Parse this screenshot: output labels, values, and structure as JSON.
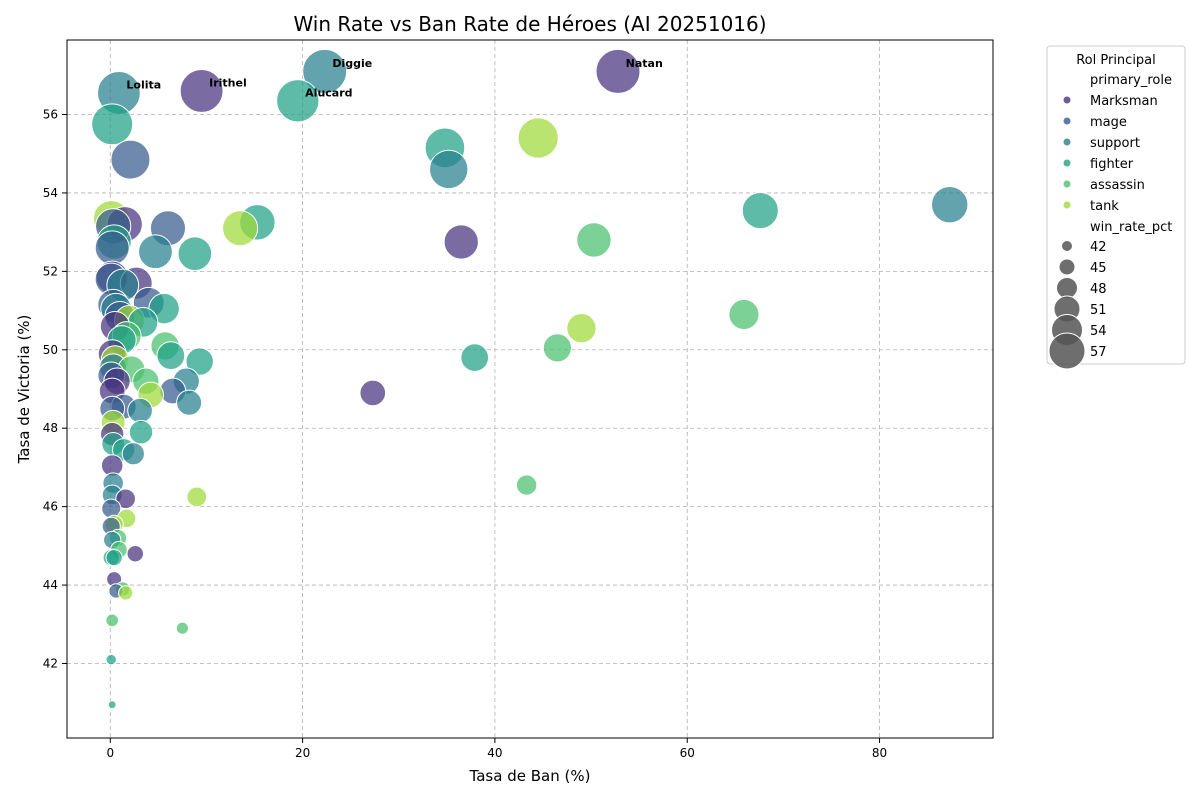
{
  "chart_data": {
    "type": "scatter",
    "title": "Win Rate vs Ban Rate de Héroes (AI 20251016)",
    "xlabel": "Tasa de Ban (%)",
    "ylabel": "Tasa de Victoria (%)",
    "xlim": [
      -4.5,
      91.8
    ],
    "ylim": [
      40.1,
      57.9
    ],
    "xticks": [
      0,
      20,
      40,
      60,
      80
    ],
    "yticks": [
      42,
      44,
      46,
      48,
      50,
      52,
      54,
      56
    ],
    "grid": true,
    "size_range": [
      41,
      57.1
    ],
    "legend": {
      "placement": "outside-right",
      "title": "Rol Principal",
      "hue_header": "primary_role",
      "size_header": "win_rate_pct",
      "size_entries": [
        42,
        45,
        48,
        51,
        54,
        57
      ]
    },
    "roles": [
      {
        "name": "Marksman",
        "color": "#46327e"
      },
      {
        "name": "mage",
        "color": "#365c8d"
      },
      {
        "name": "support",
        "color": "#277f8e"
      },
      {
        "name": "fighter",
        "color": "#1fa187"
      },
      {
        "name": "assassin",
        "color": "#4ac16d"
      },
      {
        "name": "tank",
        "color": "#a0da39"
      }
    ],
    "points": [
      {
        "x": 22.3,
        "y": 57.1,
        "role": "support",
        "label": "Diggie"
      },
      {
        "x": 52.8,
        "y": 57.1,
        "role": "Marksman",
        "label": "Natan"
      },
      {
        "x": 9.5,
        "y": 56.6,
        "role": "Marksman",
        "label": "Irithel"
      },
      {
        "x": 0.9,
        "y": 56.55,
        "role": "support",
        "label": "Lolita"
      },
      {
        "x": 19.5,
        "y": 56.35,
        "role": "fighter",
        "label": "Alucard"
      },
      {
        "x": 0.2,
        "y": 55.75,
        "role": "fighter",
        "label": ""
      },
      {
        "x": 44.5,
        "y": 55.4,
        "role": "tank",
        "label": ""
      },
      {
        "x": 34.8,
        "y": 55.15,
        "role": "fighter",
        "label": ""
      },
      {
        "x": 2.1,
        "y": 54.85,
        "role": "mage",
        "label": ""
      },
      {
        "x": 35.2,
        "y": 54.6,
        "role": "support",
        "label": ""
      },
      {
        "x": 87.3,
        "y": 53.7,
        "role": "support",
        "label": ""
      },
      {
        "x": 67.6,
        "y": 53.55,
        "role": "fighter",
        "label": ""
      },
      {
        "x": 15.3,
        "y": 53.25,
        "role": "fighter",
        "label": ""
      },
      {
        "x": 1.5,
        "y": 53.2,
        "role": "Marksman",
        "label": ""
      },
      {
        "x": 13.5,
        "y": 53.1,
        "role": "tank",
        "label": ""
      },
      {
        "x": 6.0,
        "y": 53.1,
        "role": "mage",
        "label": ""
      },
      {
        "x": 0.3,
        "y": 53.15,
        "role": "mage",
        "label": ""
      },
      {
        "x": 0.1,
        "y": 53.35,
        "role": "tank",
        "label": ""
      },
      {
        "x": 0.4,
        "y": 52.75,
        "role": "fighter",
        "label": ""
      },
      {
        "x": 36.5,
        "y": 52.75,
        "role": "Marksman",
        "label": ""
      },
      {
        "x": 50.3,
        "y": 52.8,
        "role": "assassin",
        "label": ""
      },
      {
        "x": 0.2,
        "y": 52.6,
        "role": "mage",
        "label": ""
      },
      {
        "x": 4.7,
        "y": 52.5,
        "role": "support",
        "label": ""
      },
      {
        "x": 8.8,
        "y": 52.45,
        "role": "fighter",
        "label": ""
      },
      {
        "x": 0.2,
        "y": 51.85,
        "role": "Marksman",
        "label": ""
      },
      {
        "x": 0.1,
        "y": 51.8,
        "role": "mage",
        "label": ""
      },
      {
        "x": 2.7,
        "y": 51.7,
        "role": "Marksman",
        "label": ""
      },
      {
        "x": 1.3,
        "y": 51.65,
        "role": "support",
        "label": ""
      },
      {
        "x": 4.0,
        "y": 51.2,
        "role": "mage",
        "label": ""
      },
      {
        "x": 5.6,
        "y": 51.05,
        "role": "fighter",
        "label": ""
      },
      {
        "x": 0.3,
        "y": 51.15,
        "role": "mage",
        "label": ""
      },
      {
        "x": 0.6,
        "y": 51.05,
        "role": "support",
        "label": ""
      },
      {
        "x": 1.0,
        "y": 50.85,
        "role": "mage",
        "label": ""
      },
      {
        "x": 65.9,
        "y": 50.9,
        "role": "assassin",
        "label": ""
      },
      {
        "x": 2.0,
        "y": 50.75,
        "role": "tank",
        "label": ""
      },
      {
        "x": 3.4,
        "y": 50.7,
        "role": "fighter",
        "label": ""
      },
      {
        "x": 0.5,
        "y": 50.6,
        "role": "Marksman",
        "label": ""
      },
      {
        "x": 49.0,
        "y": 50.55,
        "role": "tank",
        "label": ""
      },
      {
        "x": 1.7,
        "y": 50.35,
        "role": "assassin",
        "label": ""
      },
      {
        "x": 1.2,
        "y": 50.25,
        "role": "fighter",
        "label": ""
      },
      {
        "x": 5.7,
        "y": 50.1,
        "role": "assassin",
        "label": ""
      },
      {
        "x": 46.5,
        "y": 50.05,
        "role": "assassin",
        "label": ""
      },
      {
        "x": 0.2,
        "y": 49.9,
        "role": "Marksman",
        "label": ""
      },
      {
        "x": 6.3,
        "y": 49.85,
        "role": "fighter",
        "label": ""
      },
      {
        "x": 37.9,
        "y": 49.8,
        "role": "fighter",
        "label": ""
      },
      {
        "x": 0.5,
        "y": 49.75,
        "role": "tank",
        "label": ""
      },
      {
        "x": 9.3,
        "y": 49.7,
        "role": "fighter",
        "label": ""
      },
      {
        "x": 0.3,
        "y": 49.55,
        "role": "support",
        "label": ""
      },
      {
        "x": 2.2,
        "y": 49.5,
        "role": "assassin",
        "label": ""
      },
      {
        "x": 0.1,
        "y": 49.35,
        "role": "mage",
        "label": ""
      },
      {
        "x": 0.7,
        "y": 49.2,
        "role": "Marksman",
        "label": ""
      },
      {
        "x": 3.7,
        "y": 49.2,
        "role": "assassin",
        "label": ""
      },
      {
        "x": 7.9,
        "y": 49.2,
        "role": "support",
        "label": ""
      },
      {
        "x": 6.5,
        "y": 48.95,
        "role": "mage",
        "label": ""
      },
      {
        "x": 0.2,
        "y": 48.95,
        "role": "Marksman",
        "label": ""
      },
      {
        "x": 27.3,
        "y": 48.9,
        "role": "Marksman",
        "label": ""
      },
      {
        "x": 4.2,
        "y": 48.85,
        "role": "tank",
        "label": ""
      },
      {
        "x": 8.2,
        "y": 48.65,
        "role": "support",
        "label": ""
      },
      {
        "x": 1.4,
        "y": 48.55,
        "role": "mage",
        "label": ""
      },
      {
        "x": 0.2,
        "y": 48.5,
        "role": "mage",
        "label": ""
      },
      {
        "x": 3.1,
        "y": 48.45,
        "role": "support",
        "label": ""
      },
      {
        "x": 0.3,
        "y": 48.15,
        "role": "tank",
        "label": ""
      },
      {
        "x": 3.2,
        "y": 47.9,
        "role": "fighter",
        "label": ""
      },
      {
        "x": 0.2,
        "y": 47.85,
        "role": "Marksman",
        "label": ""
      },
      {
        "x": 0.3,
        "y": 47.6,
        "role": "fighter",
        "label": ""
      },
      {
        "x": 1.4,
        "y": 47.45,
        "role": "fighter",
        "label": ""
      },
      {
        "x": 2.4,
        "y": 47.35,
        "role": "support",
        "label": ""
      },
      {
        "x": 0.2,
        "y": 47.05,
        "role": "Marksman",
        "label": ""
      },
      {
        "x": 43.3,
        "y": 46.55,
        "role": "assassin",
        "label": ""
      },
      {
        "x": 0.3,
        "y": 46.6,
        "role": "support",
        "label": ""
      },
      {
        "x": 0.2,
        "y": 46.3,
        "role": "support",
        "label": ""
      },
      {
        "x": 9.0,
        "y": 46.25,
        "role": "tank",
        "label": ""
      },
      {
        "x": 1.6,
        "y": 46.2,
        "role": "Marksman",
        "label": ""
      },
      {
        "x": 0.1,
        "y": 45.95,
        "role": "mage",
        "label": ""
      },
      {
        "x": 1.7,
        "y": 45.7,
        "role": "tank",
        "label": ""
      },
      {
        "x": 0.4,
        "y": 45.55,
        "role": "tank",
        "label": ""
      },
      {
        "x": 0.1,
        "y": 45.5,
        "role": "mage",
        "label": ""
      },
      {
        "x": 0.2,
        "y": 45.15,
        "role": "support",
        "label": ""
      },
      {
        "x": 0.8,
        "y": 45.2,
        "role": "assassin",
        "label": ""
      },
      {
        "x": 0.9,
        "y": 44.9,
        "role": "assassin",
        "label": ""
      },
      {
        "x": 2.6,
        "y": 44.8,
        "role": "Marksman",
        "label": ""
      },
      {
        "x": 0.1,
        "y": 44.7,
        "role": "fighter",
        "label": ""
      },
      {
        "x": 0.4,
        "y": 44.7,
        "role": "fighter",
        "label": ""
      },
      {
        "x": 0.4,
        "y": 44.15,
        "role": "Marksman",
        "label": ""
      },
      {
        "x": 1.3,
        "y": 43.9,
        "role": "assassin",
        "label": ""
      },
      {
        "x": 0.6,
        "y": 43.85,
        "role": "mage",
        "label": ""
      },
      {
        "x": 1.6,
        "y": 43.8,
        "role": "tank",
        "label": ""
      },
      {
        "x": 0.2,
        "y": 43.1,
        "role": "assassin",
        "label": ""
      },
      {
        "x": 7.5,
        "y": 42.9,
        "role": "assassin",
        "label": ""
      },
      {
        "x": 0.1,
        "y": 42.1,
        "role": "fighter",
        "label": ""
      },
      {
        "x": 0.2,
        "y": 40.95,
        "role": "fighter",
        "label": ""
      }
    ]
  }
}
